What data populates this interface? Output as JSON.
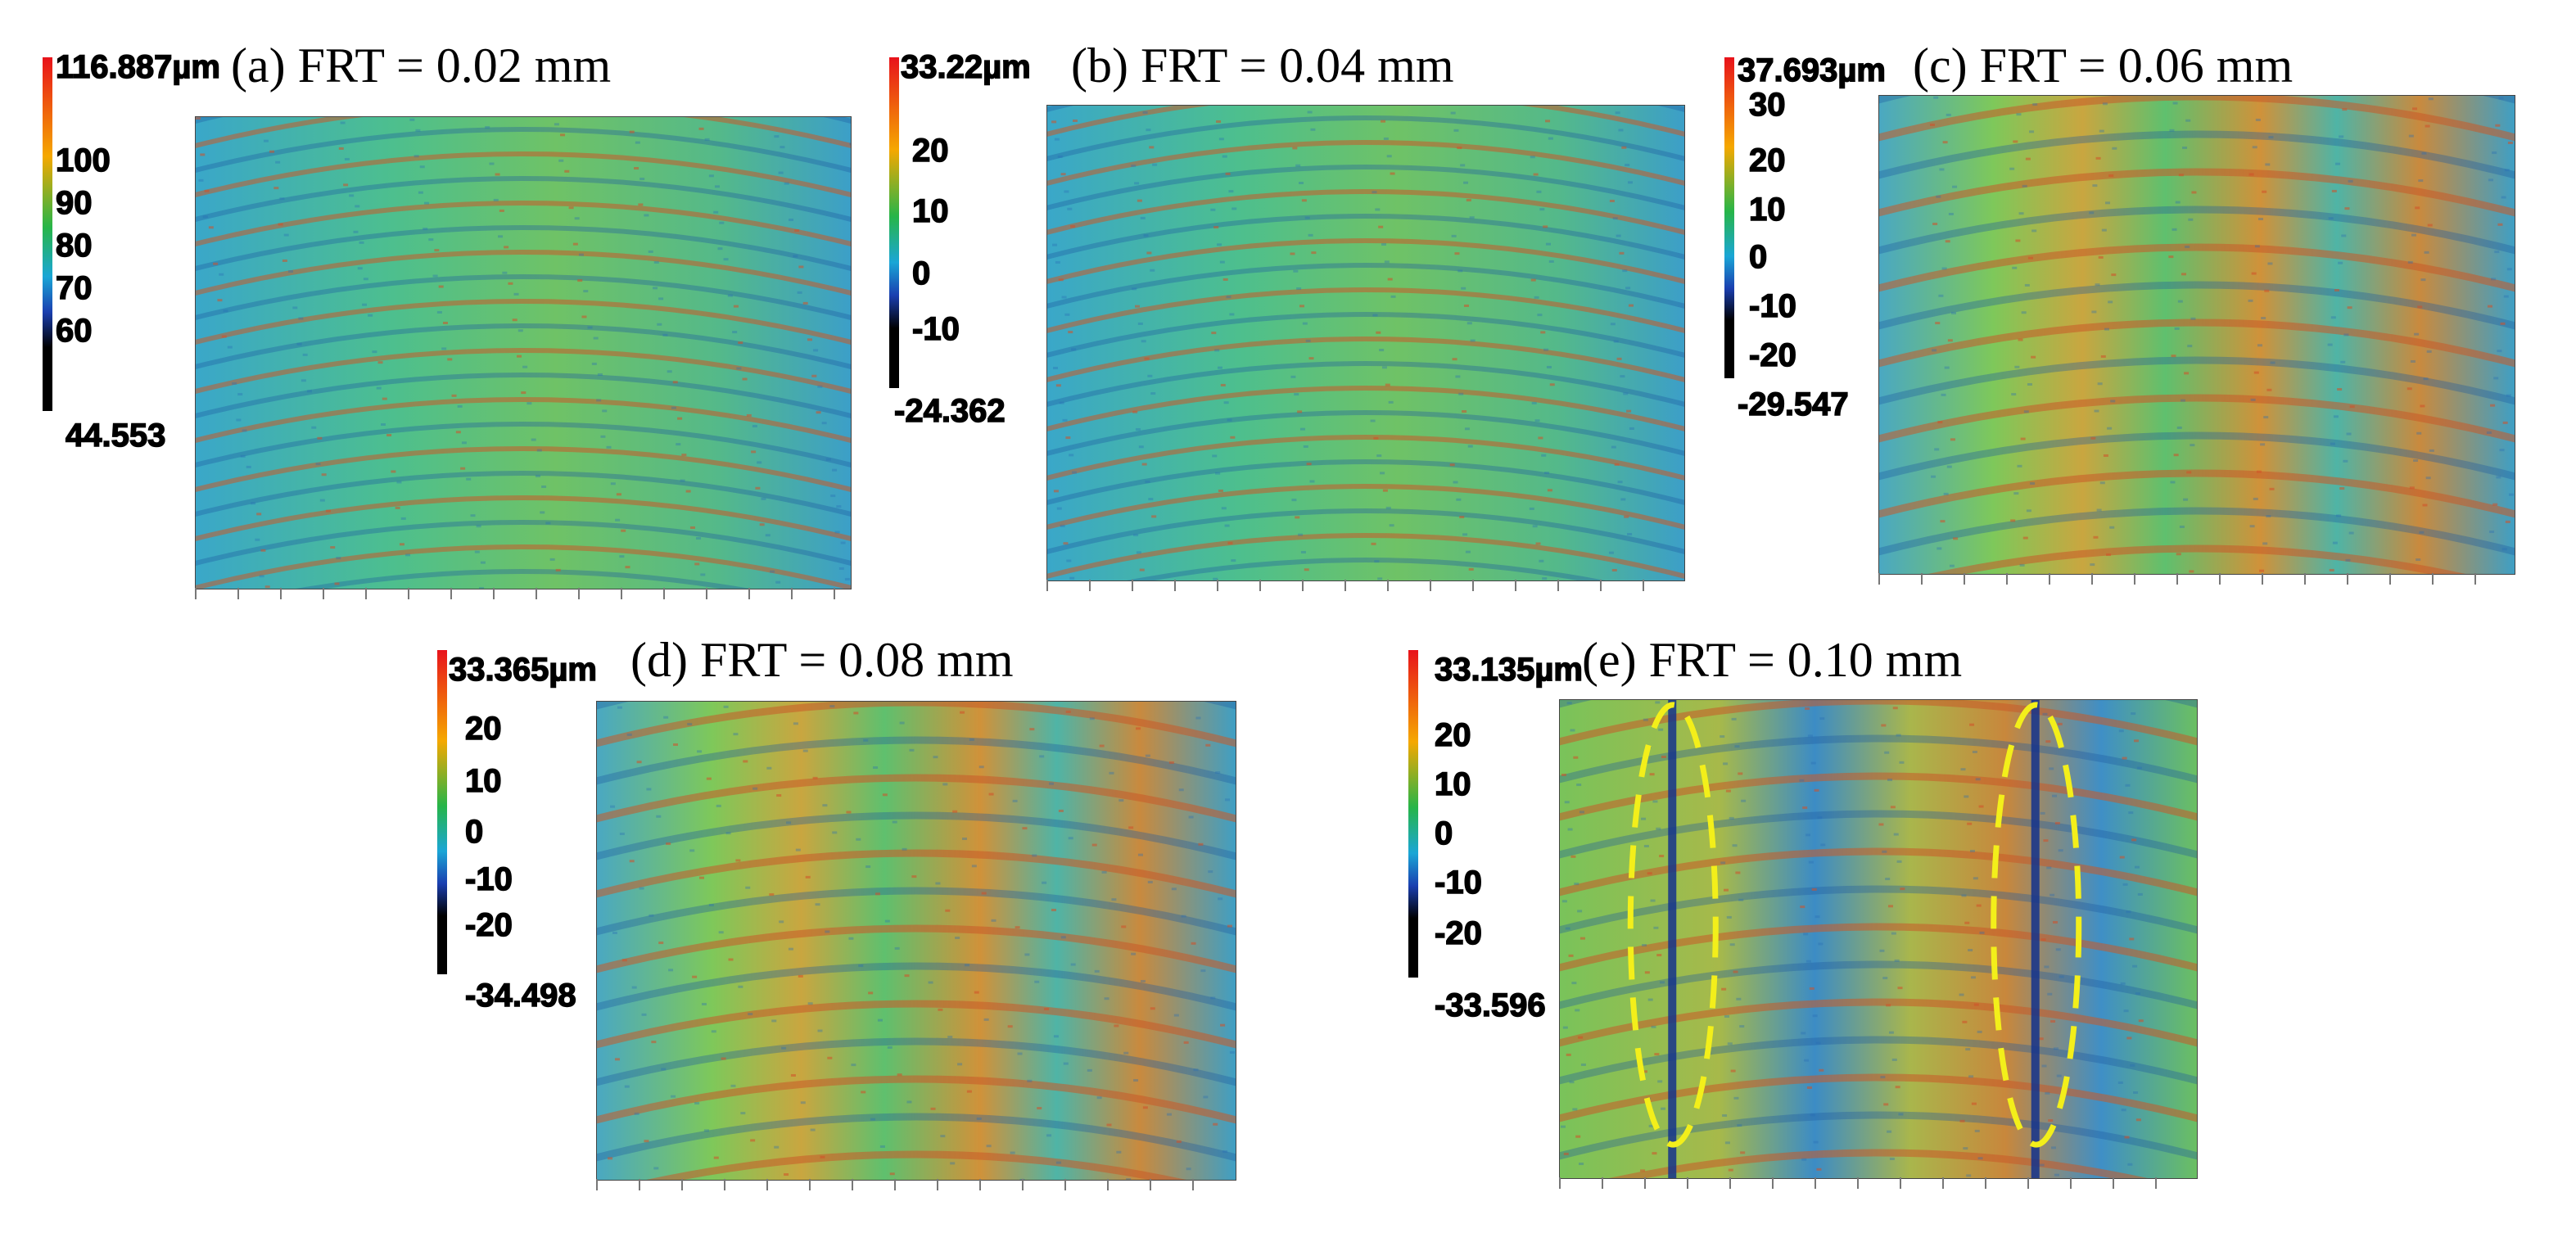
{
  "panels": [
    {
      "title": "(a) FRT = 0.02 mm",
      "colorbar": {
        "max": "116.887µm",
        "ticks": [
          "100",
          "90",
          "80",
          "70",
          "60"
        ],
        "min": "44.553"
      },
      "pattern": "fine"
    },
    {
      "title": "(b) FRT = 0.04 mm",
      "colorbar": {
        "max": "33.22µm",
        "ticks": [
          "20",
          "10",
          "0",
          "-10"
        ],
        "min": "-24.362"
      },
      "pattern": "fine"
    },
    {
      "title": "(c) FRT = 0.06 mm",
      "colorbar": {
        "max": "37.693µm",
        "ticks": [
          "30",
          "20",
          "10",
          "0",
          "-10",
          "-20"
        ],
        "min": "-29.547"
      },
      "pattern": "banded"
    },
    {
      "title": "(d) FRT = 0.08 mm",
      "colorbar": {
        "max": "33.365µm",
        "ticks": [
          "20",
          "10",
          "0",
          "-10",
          "-20"
        ],
        "min": "-34.498"
      },
      "pattern": "banded"
    },
    {
      "title": "(e) FRT = 0.10 mm",
      "colorbar": {
        "max": "33.135µm",
        "ticks": [
          "20",
          "10",
          "0",
          "-10",
          "-20"
        ],
        "min": "-33.596"
      },
      "pattern": "grooved",
      "highlight": "dashed ellipses around two grooves"
    }
  ],
  "colors": {
    "scale_high": "#e8121b",
    "scale_mid_high": "#f5a800",
    "scale_mid": "#27b548",
    "scale_mid_low": "#1aa6d6",
    "scale_low": "#1a3fb0",
    "scale_bottom": "#000000",
    "highlight": "#f3ef1a"
  }
}
